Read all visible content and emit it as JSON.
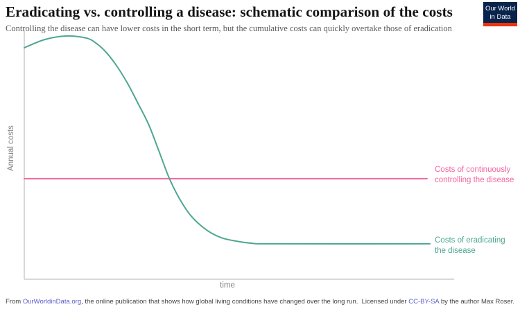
{
  "header": {
    "title": "Eradicating vs. controlling a disease: schematic comparison of the costs",
    "subtitle": "Controlling the disease can have lower costs in the short term, but the cumulative costs can quickly overtake those of eradication",
    "logo": {
      "line1": "Our World",
      "line2": "in Data",
      "bg_color": "#08244c",
      "bar_color": "#f0320c"
    }
  },
  "chart_data": {
    "type": "line",
    "title": "Eradicating vs. controlling a disease: schematic comparison of the costs",
    "xlabel": "time",
    "ylabel": "Annual costs",
    "x_range": [
      0,
      1
    ],
    "y_range": [
      0,
      1
    ],
    "grid": false,
    "tick_labels": false,
    "legend_position": "right of line ends",
    "series": [
      {
        "name": "Costs of continuously controlling the disease",
        "label_lines": [
          "Costs of continuously",
          "controlling the disease"
        ],
        "color": "#f2679f",
        "shape": "constant",
        "points": [
          [
            0,
            0.403
          ],
          [
            0.993,
            0.403
          ]
        ]
      },
      {
        "name": "Costs of eradicating the disease",
        "label_lines": [
          "Costs of eradicating",
          "the disease"
        ],
        "color": "#4da692",
        "shape": "sigmoid-decline",
        "points": [
          [
            0.0,
            0.928
          ],
          [
            0.051,
            0.961
          ],
          [
            0.102,
            0.975
          ],
          [
            0.153,
            0.967
          ],
          [
            0.179,
            0.944
          ],
          [
            0.204,
            0.906
          ],
          [
            0.23,
            0.85
          ],
          [
            0.256,
            0.781
          ],
          [
            0.281,
            0.703
          ],
          [
            0.307,
            0.619
          ],
          [
            0.332,
            0.514
          ],
          [
            0.358,
            0.403
          ],
          [
            0.383,
            0.322
          ],
          [
            0.409,
            0.258
          ],
          [
            0.434,
            0.217
          ],
          [
            0.46,
            0.186
          ],
          [
            0.485,
            0.167
          ],
          [
            0.511,
            0.156
          ],
          [
            0.562,
            0.144
          ],
          [
            0.622,
            0.142
          ],
          [
            1.0,
            0.142
          ]
        ]
      }
    ]
  },
  "footer": {
    "left": {
      "prefix": "From ",
      "link_text": "OurWorldinData.org",
      "suffix": ", the online publication that shows how global living conditions have changed over the long run."
    },
    "right": {
      "prefix": "Licensed under ",
      "link_text": "CC-BY-SA",
      "suffix": " by the author Max Roser."
    },
    "link_color": "#5b5bc9"
  }
}
